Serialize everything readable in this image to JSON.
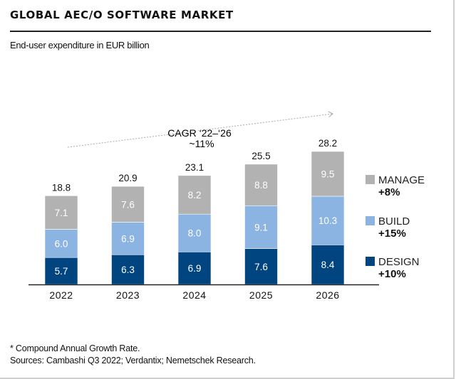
{
  "chart_data": {
    "type": "bar",
    "stacked": true,
    "title": "GLOBAL AEC/O SOFTWARE MARKET",
    "subtitle": "End-user expenditure in EUR billion",
    "categories": [
      "2022",
      "2023",
      "2024",
      "2025",
      "2026"
    ],
    "series": [
      {
        "name": "DESIGN",
        "growth": "+10%",
        "color": "#004480",
        "values": [
          5.7,
          6.3,
          6.9,
          7.6,
          8.4
        ]
      },
      {
        "name": "BUILD",
        "growth": "+15%",
        "color": "#8cb4e2",
        "values": [
          6.0,
          6.9,
          8.0,
          9.1,
          10.3
        ]
      },
      {
        "name": "MANAGE",
        "growth": "+8%",
        "color": "#b2b2b2",
        "values": [
          7.1,
          7.6,
          8.2,
          8.8,
          9.5
        ]
      }
    ],
    "totals": [
      "18.8",
      "20.9",
      "23.1",
      "25.5",
      "28.2"
    ],
    "annotation": {
      "line1": "CAGR ‘22–‘26",
      "line2": "~11%"
    },
    "legend_position": "right",
    "grid": false,
    "ylim": [
      0,
      28.2
    ]
  },
  "footnotes": {
    "note": "*  Compound Annual Growth Rate.",
    "sources": "Sources: Cambashi Q3 2022; Verdantix; Nemetschek Research."
  }
}
